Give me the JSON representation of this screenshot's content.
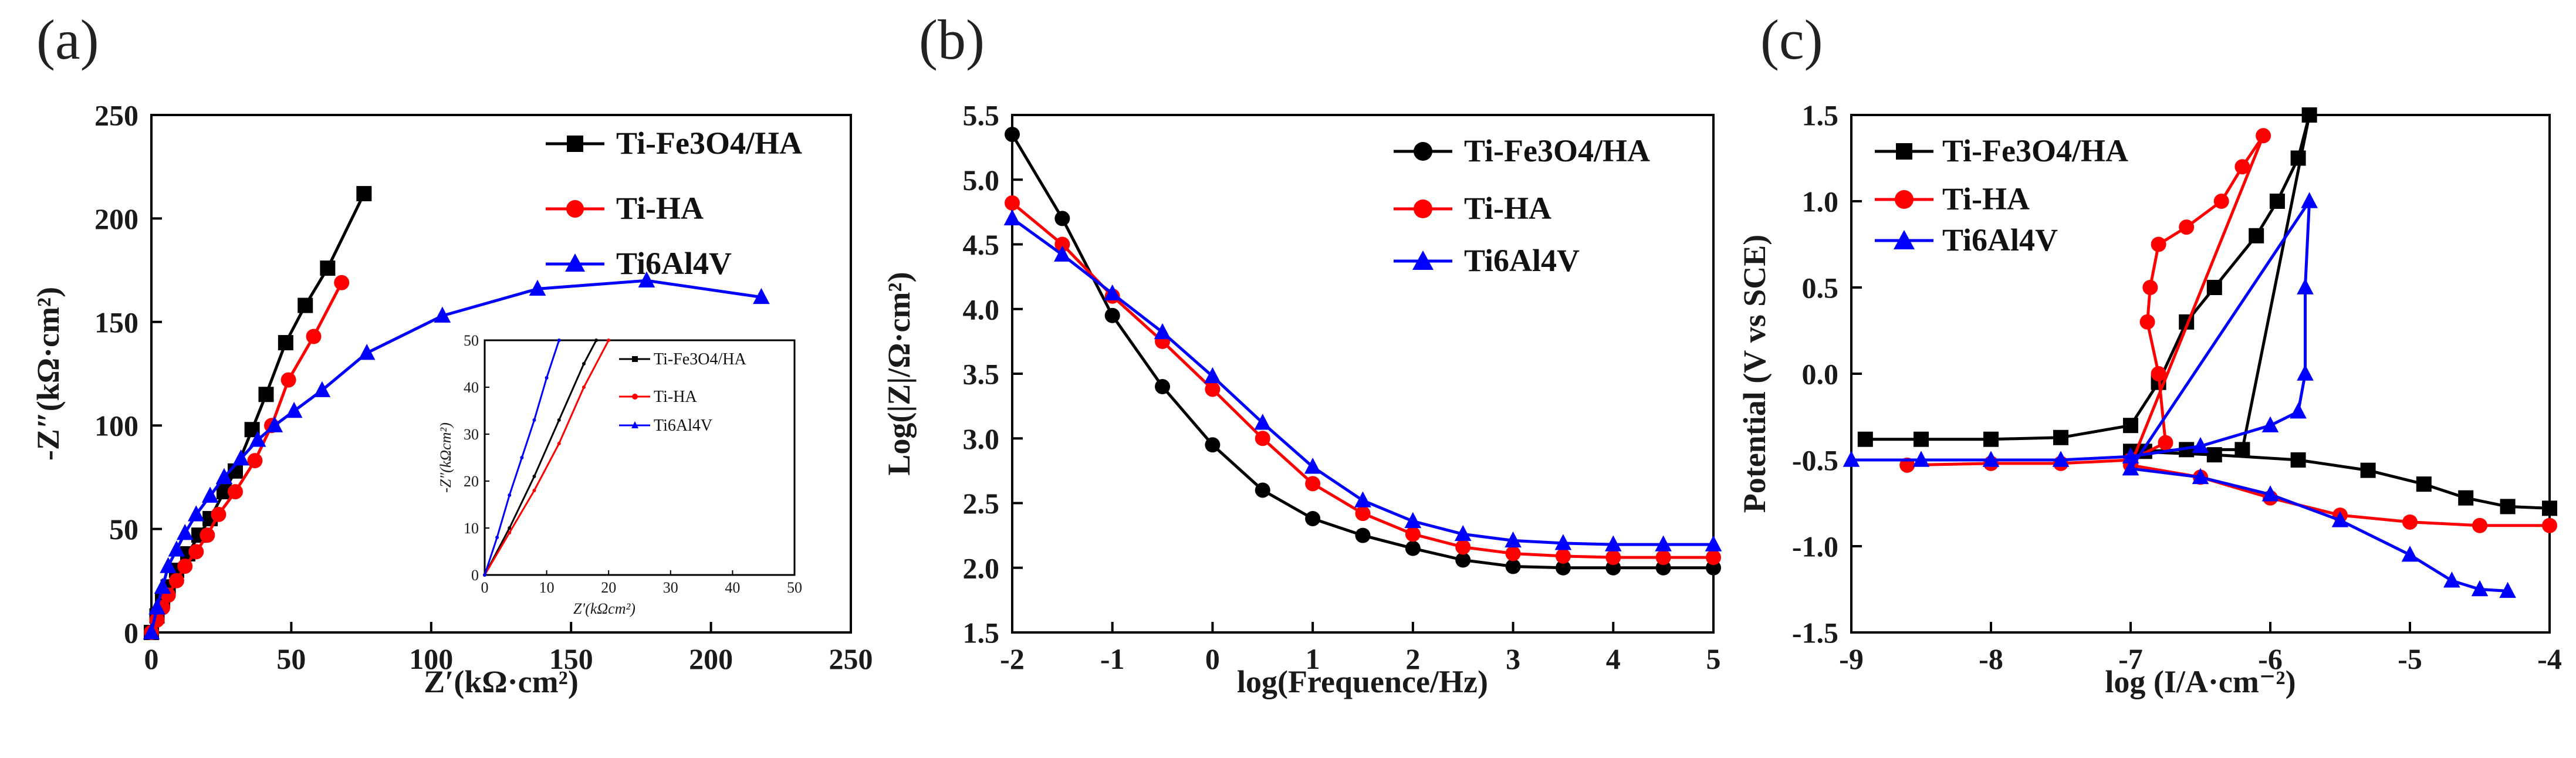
{
  "chart_data": [
    {
      "panel": "(a)",
      "type": "line",
      "xlabel": "Z′(kΩ·cm²)",
      "ylabel": "-Z″(kΩ·cm²)",
      "xlim": [
        0,
        250
      ],
      "ylim": [
        0,
        250
      ],
      "xticks": [
        0,
        50,
        100,
        150,
        200,
        250
      ],
      "yticks": [
        0,
        50,
        100,
        150,
        200,
        250
      ],
      "legend_position": "top-right",
      "series": [
        {
          "name": "Ti-Fe3O4/HA",
          "marker": "square",
          "color": "#000000",
          "x": [
            0,
            2,
            4,
            6,
            9,
            13,
            17,
            21,
            26,
            30,
            36,
            41,
            48,
            55,
            63,
            76
          ],
          "y": [
            0,
            8,
            15,
            22,
            30,
            38,
            47,
            55,
            68,
            78,
            98,
            115,
            140,
            158,
            176,
            212
          ]
        },
        {
          "name": "Ti-HA",
          "marker": "circle",
          "color": "#ff0000",
          "x": [
            0,
            2,
            4,
            6,
            9,
            12,
            16,
            20,
            24,
            30,
            37,
            43,
            49,
            58,
            68
          ],
          "y": [
            0,
            6,
            12,
            18,
            25,
            32,
            39,
            47,
            57,
            68,
            83,
            100,
            122,
            143,
            169
          ]
        },
        {
          "name": "Ti6Al4V",
          "marker": "triangle",
          "color": "#0000ff",
          "x": [
            0,
            2,
            4,
            6,
            9,
            12,
            16,
            21,
            26,
            32,
            38,
            44,
            51,
            61,
            77,
            104,
            138,
            177,
            218
          ],
          "y": [
            0,
            12,
            22,
            32,
            40,
            48,
            57,
            66,
            75,
            84,
            93,
            100,
            107,
            117,
            135,
            153,
            166,
            170,
            162
          ]
        }
      ],
      "inset": {
        "xlabel": "Z′(kΩcm²)",
        "ylabel": "-Z″(kΩcm²)",
        "xlim": [
          0,
          50
        ],
        "ylim": [
          0,
          50
        ],
        "xticks": [
          0,
          10,
          20,
          30,
          40,
          50
        ],
        "yticks": [
          0,
          10,
          20,
          30,
          40,
          50
        ],
        "series": [
          {
            "name": "Ti-Fe3O4/HA",
            "color": "#000000",
            "x": [
              0,
              4,
              8,
              12,
              16,
              18
            ],
            "y": [
              0,
              10,
              21,
              33,
              45,
              50
            ]
          },
          {
            "name": "Ti-HA",
            "color": "#ff0000",
            "x": [
              0,
              4,
              8,
              12,
              16,
              20
            ],
            "y": [
              0,
              9,
              18,
              28,
              40,
              50
            ]
          },
          {
            "name": "Ti6Al4V",
            "color": "#0000ff",
            "x": [
              0,
              2,
              4,
              6,
              8,
              10,
              12
            ],
            "y": [
              0,
              8,
              17,
              25,
              33,
              42,
              50
            ]
          }
        ]
      }
    },
    {
      "panel": "(b)",
      "type": "line",
      "xlabel": "log(Frequence/Hz)",
      "ylabel": "Log(|Z|/Ω·cm²)",
      "xlim": [
        -2,
        5
      ],
      "ylim": [
        1.5,
        5.5
      ],
      "xticks": [
        -2,
        -1,
        0,
        1,
        2,
        3,
        4,
        5
      ],
      "yticks": [
        1.5,
        2.0,
        2.5,
        3.0,
        3.5,
        4.0,
        4.5,
        5.0,
        5.5
      ],
      "legend_position": "top-right",
      "series": [
        {
          "name": "Ti-Fe3O4/HA",
          "marker": "circle",
          "color": "#000000",
          "x": [
            -2,
            -1.5,
            -1,
            -0.5,
            0,
            0.5,
            1,
            1.5,
            2,
            2.5,
            3,
            3.5,
            4,
            4.5,
            5
          ],
          "y": [
            5.35,
            4.7,
            3.95,
            3.4,
            2.95,
            2.6,
            2.38,
            2.25,
            2.15,
            2.06,
            2.01,
            2.0,
            2.0,
            2.0,
            2.0
          ]
        },
        {
          "name": "Ti-HA",
          "marker": "circle",
          "color": "#ff0000",
          "x": [
            -2,
            -1.5,
            -1,
            -0.5,
            0,
            0.5,
            1,
            1.5,
            2,
            2.5,
            3,
            3.5,
            4,
            4.5,
            5
          ],
          "y": [
            4.82,
            4.5,
            4.1,
            3.75,
            3.38,
            3.0,
            2.65,
            2.42,
            2.26,
            2.16,
            2.11,
            2.09,
            2.08,
            2.08,
            2.08
          ]
        },
        {
          "name": "Ti6Al4V",
          "marker": "triangle",
          "color": "#0000ff",
          "x": [
            -2,
            -1.5,
            -1,
            -0.5,
            0,
            0.5,
            1,
            1.5,
            2,
            2.5,
            3,
            3.5,
            4,
            4.5,
            5
          ],
          "y": [
            4.7,
            4.42,
            4.12,
            3.82,
            3.48,
            3.12,
            2.78,
            2.52,
            2.36,
            2.26,
            2.21,
            2.19,
            2.18,
            2.18,
            2.18
          ]
        }
      ]
    },
    {
      "panel": "(c)",
      "type": "line",
      "xlabel": "log (I/A·cm⁻²)",
      "ylabel": "Potential (V vs SCE)",
      "xlim": [
        -9,
        -4
      ],
      "ylim": [
        -1.5,
        1.5
      ],
      "xticks": [
        -9,
        -8,
        -7,
        -6,
        -5,
        -4
      ],
      "yticks": [
        -1.5,
        -1.0,
        -0.5,
        0.0,
        0.5,
        1.0,
        1.5
      ],
      "legend_position": "top-left",
      "series": [
        {
          "name": "Ti-Fe3O4/HA",
          "marker": "square",
          "color": "#000000",
          "x": [
            -8.9,
            -8.5,
            -8.0,
            -7.5,
            -7.0,
            -6.8,
            -6.6,
            -6.4,
            -6.1,
            -5.95,
            -5.8,
            -5.72,
            -6.2,
            -6.6,
            -6.9,
            -7.0,
            -6.4,
            -5.8,
            -5.3,
            -4.9,
            -4.6,
            -4.3,
            -4.0
          ],
          "y": [
            -0.38,
            -0.38,
            -0.38,
            -0.37,
            -0.3,
            -0.05,
            0.3,
            0.5,
            0.8,
            1.0,
            1.25,
            1.5,
            -0.44,
            -0.44,
            -0.45,
            -0.45,
            -0.47,
            -0.5,
            -0.56,
            -0.64,
            -0.72,
            -0.77,
            -0.78
          ]
        },
        {
          "name": "Ti-HA",
          "marker": "circle",
          "color": "#ff0000",
          "x": [
            -8.6,
            -8.0,
            -7.5,
            -7.0,
            -6.75,
            -6.8,
            -6.88,
            -6.86,
            -6.8,
            -6.6,
            -6.35,
            -6.2,
            -6.05,
            -7.0,
            -6.5,
            -6.0,
            -5.5,
            -5.0,
            -4.5,
            -4.0
          ],
          "y": [
            -0.53,
            -0.52,
            -0.52,
            -0.5,
            -0.4,
            0.0,
            0.3,
            0.5,
            0.75,
            0.85,
            1.0,
            1.2,
            1.38,
            -0.53,
            -0.6,
            -0.72,
            -0.82,
            -0.86,
            -0.88,
            -0.88
          ]
        },
        {
          "name": "Ti6Al4V",
          "marker": "triangle",
          "color": "#0000ff",
          "x": [
            -9.0,
            -8.5,
            -8.0,
            -7.5,
            -7.0,
            -6.5,
            -6.0,
            -5.8,
            -5.75,
            -5.75,
            -5.72,
            -7.0,
            -6.5,
            -6.0,
            -5.5,
            -5.0,
            -4.7,
            -4.5,
            -4.3
          ],
          "y": [
            -0.5,
            -0.5,
            -0.5,
            -0.5,
            -0.48,
            -0.42,
            -0.3,
            -0.22,
            0.0,
            0.5,
            1.0,
            -0.55,
            -0.6,
            -0.7,
            -0.85,
            -1.05,
            -1.2,
            -1.25,
            -1.26
          ]
        }
      ]
    }
  ]
}
